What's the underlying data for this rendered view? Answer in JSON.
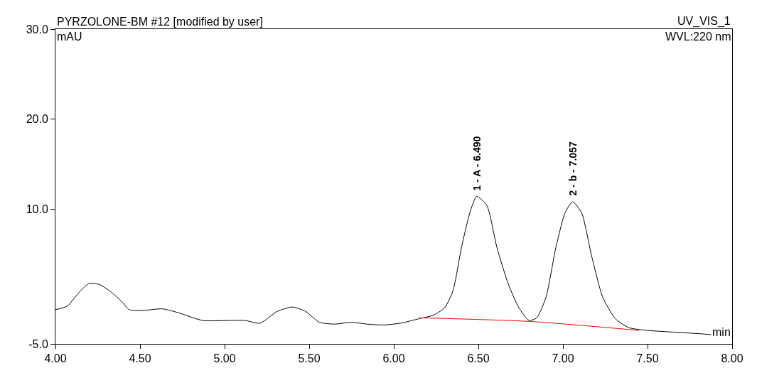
{
  "chart_data": {
    "type": "line",
    "title": "PYRZOLONE-BM #12 [modified by user]",
    "xlabel": "min",
    "ylabel": "mAU",
    "annotations": [
      "UV_VIS_1",
      "WVL:220 nm",
      {
        "text": "1 - A - 6.490",
        "x": 6.49,
        "y": 11.4
      },
      {
        "text": "2 - b - 7.057",
        "x": 7.057,
        "y": 10.8
      }
    ],
    "series": [
      {
        "color": "#000000",
        "x": [
          4.0,
          4.07,
          4.134,
          4.197,
          4.26,
          4.32,
          4.387,
          4.437,
          4.51,
          4.63,
          4.72,
          4.87,
          5.017,
          5.12,
          5.21,
          5.31,
          5.4,
          5.48,
          5.56,
          5.65,
          5.75,
          5.84,
          5.94,
          6.04,
          6.15,
          6.235,
          6.3,
          6.35,
          6.4,
          6.45,
          6.49,
          6.55,
          6.61,
          6.676,
          6.74,
          6.8,
          6.845,
          6.9,
          6.958,
          7.013,
          7.057,
          7.11,
          7.168,
          7.235,
          7.31,
          7.39,
          7.496,
          7.66,
          7.83,
          8.0
        ],
        "values": [
          -1.2,
          -0.8,
          0.6,
          1.7,
          1.6,
          0.9,
          -0.2,
          -1.2,
          -1.3,
          -1.1,
          -1.5,
          -2.4,
          -2.4,
          -2.4,
          -2.7,
          -1.4,
          -0.9,
          -1.4,
          -2.6,
          -2.8,
          -2.6,
          -2.8,
          -2.9,
          -2.7,
          -2.2,
          -1.8,
          -1.0,
          0.9,
          5.7,
          9.6,
          11.4,
          10.4,
          5.7,
          1.7,
          -1.0,
          -2.4,
          -2.1,
          0.2,
          5.7,
          9.6,
          10.8,
          9.6,
          4.9,
          0.2,
          -2.2,
          -3.2,
          -3.5,
          -3.7,
          -3.9,
          -4.2
        ]
      },
      {
        "color": "#ff0000",
        "x": [
          6.15,
          6.8,
          7.45
        ],
        "values": [
          -2.1,
          -2.5,
          -3.5
        ]
      }
    ],
    "xlim": [
      4.0,
      8.0
    ],
    "xticks": [
      {
        "value": 4.0,
        "label": "4.00"
      },
      {
        "value": 4.5,
        "label": "4.50"
      },
      {
        "value": 5.0,
        "label": "5.00"
      },
      {
        "value": 5.5,
        "label": "5.50"
      },
      {
        "value": 6.0,
        "label": "6.00"
      },
      {
        "value": 6.5,
        "label": "6.50"
      },
      {
        "value": 7.0,
        "label": "7.00"
      },
      {
        "value": 7.5,
        "label": "7.50"
      },
      {
        "value": 8.0,
        "label": "8.00"
      }
    ],
    "ylim": [
      -5.0,
      30.0
    ],
    "yticks": [
      {
        "value": -5.0,
        "label": "-5.0"
      },
      {
        "value": 10.0,
        "label": "10.0"
      },
      {
        "value": 20.0,
        "label": "20.0"
      },
      {
        "value": 30.0,
        "label": "30.0"
      }
    ],
    "marker": "none",
    "line_style": "solid"
  }
}
